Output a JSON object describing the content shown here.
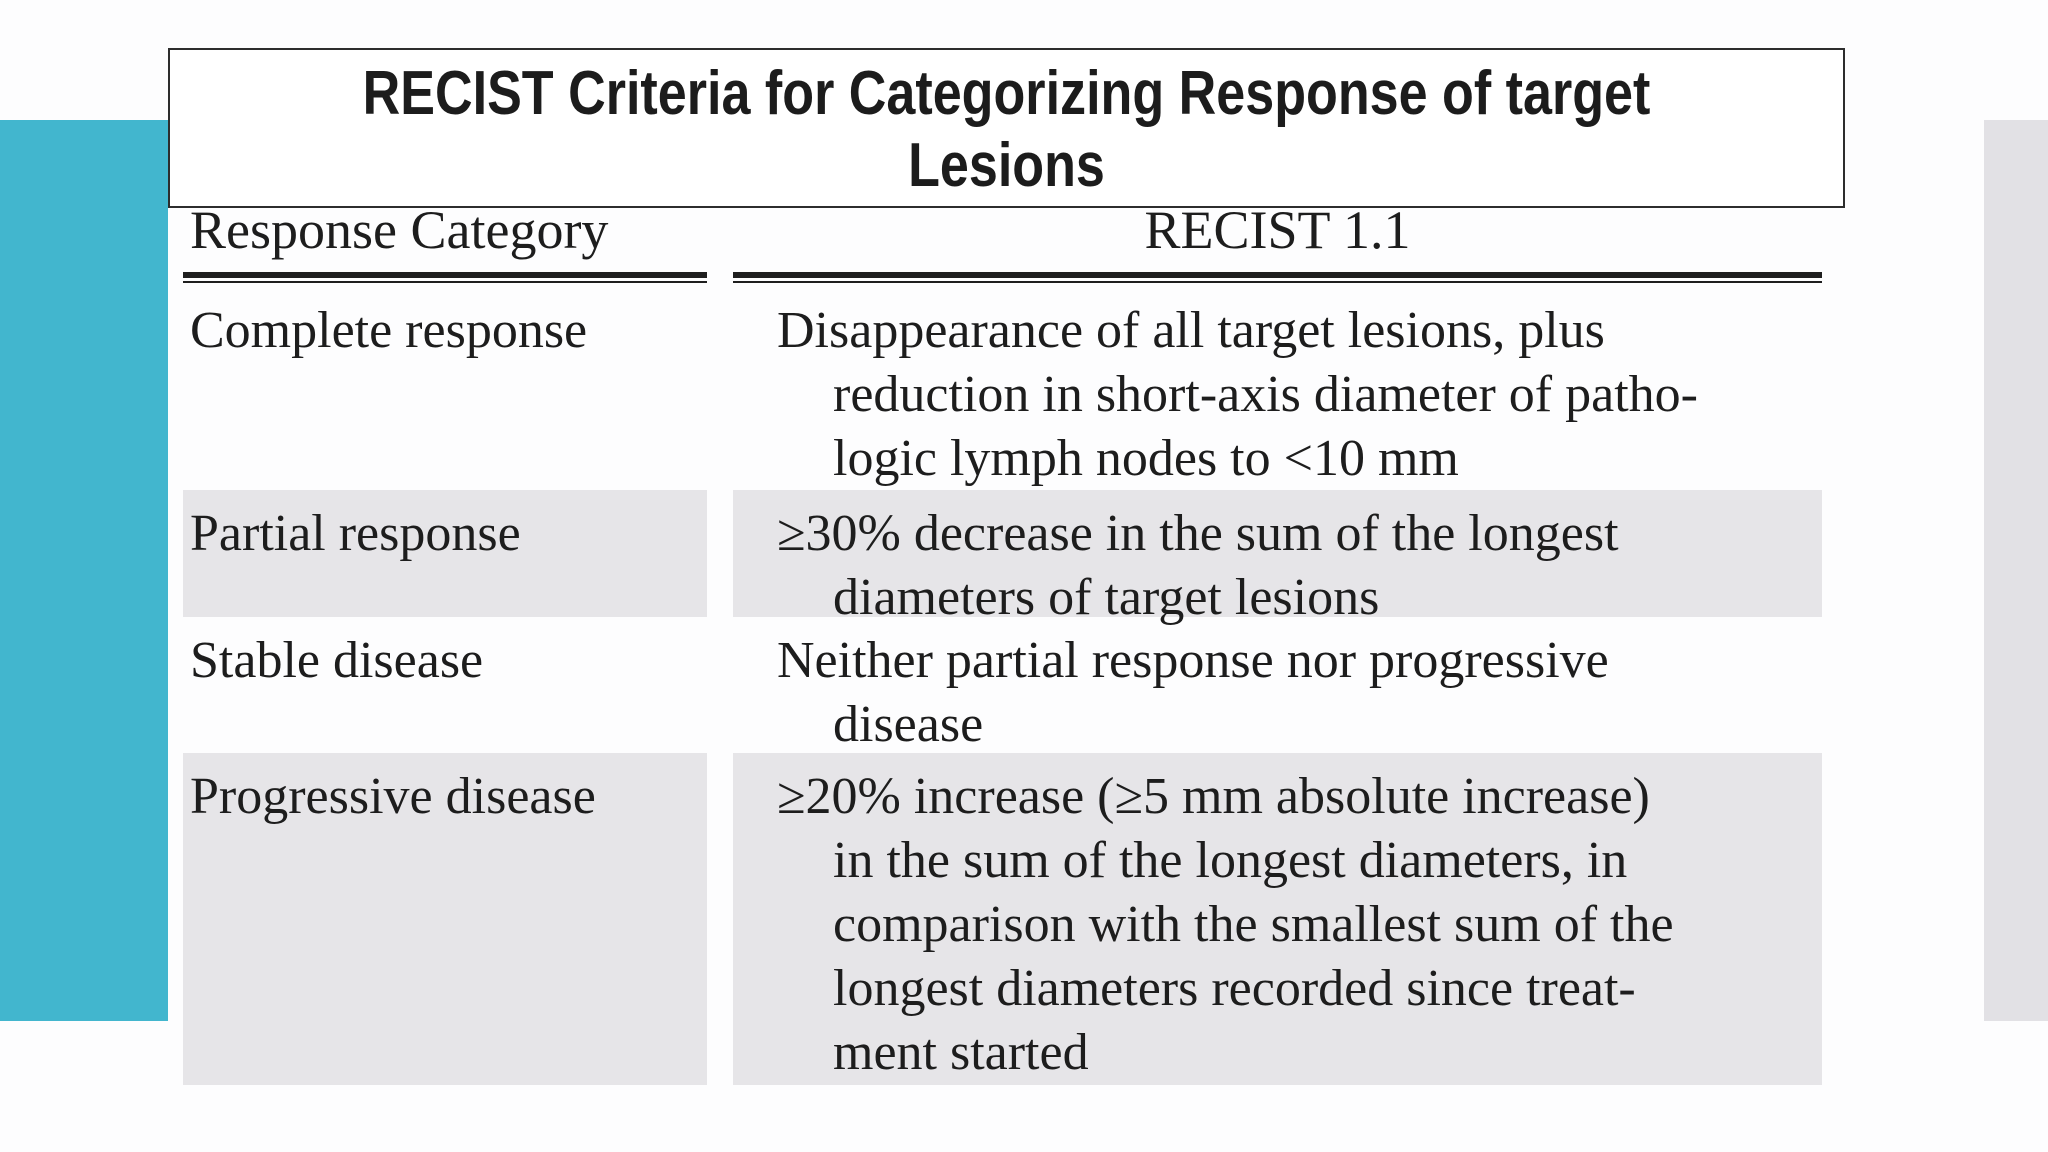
{
  "slide": {
    "title_line1": "RECIST Criteria for Categorizing Response of target",
    "title_line2": "Lesions"
  },
  "table": {
    "headers": {
      "col1": "Response Category",
      "col2": "RECIST 1.1"
    },
    "rows": [
      {
        "category": "Complete response",
        "shaded": false,
        "lines": [
          "Disappearance of all target lesions, plus",
          "reduction in short-axis diameter of patho-",
          "logic lymph nodes to <10 mm"
        ]
      },
      {
        "category": "Partial response",
        "shaded": true,
        "lines": [
          "≥30% decrease in the sum of the longest",
          "diameters of target lesions"
        ]
      },
      {
        "category": "Stable disease",
        "shaded": false,
        "lines": [
          "Neither partial response nor progressive",
          "disease"
        ]
      },
      {
        "category": "Progressive disease",
        "shaded": true,
        "lines": [
          "≥20% increase (≥5 mm absolute increase)",
          "in the sum of the longest diameters, in",
          "comparison with the smallest sum of the",
          "longest diameters recorded since treat-",
          "ment started"
        ]
      }
    ]
  },
  "colors": {
    "accent_teal": "#42b6ce",
    "side_bar_gray": "#e2e1e5",
    "row_shade_gray": "#e6e5e8",
    "text": "#1d1d1d",
    "title_border": "#2d2d2d"
  }
}
